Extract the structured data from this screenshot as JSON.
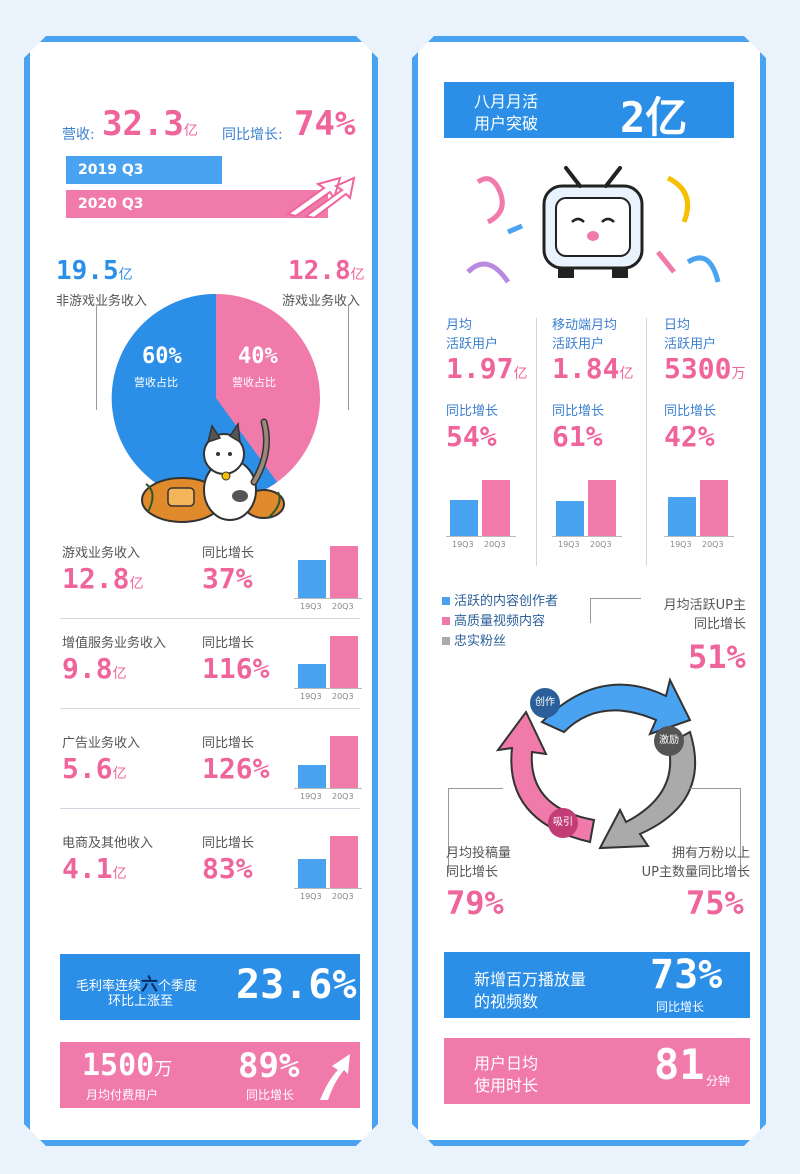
{
  "left": {
    "revenue_label": "营收:",
    "revenue_value": "32.3",
    "revenue_unit": "亿",
    "yoy_label": "同比增长:",
    "yoy_value": "74%",
    "q_2019": "2019 Q3",
    "q_2020": "2020 Q3",
    "pie": {
      "non_game_value": "19.5",
      "non_game_unit": "亿",
      "non_game_label": "非游戏业务收入",
      "game_value": "12.8",
      "game_unit": "亿",
      "game_label": "游戏业务收入",
      "non_game_pct": "60%",
      "game_pct": "40%",
      "share_label": "营收占比"
    },
    "segments": [
      {
        "name": "游戏业务收入",
        "value": "12.8",
        "unit": "亿",
        "yoy_label": "同比增长",
        "yoy": "37%",
        "ratio_2019": 0.73
      },
      {
        "name": "增值服务业务收入",
        "value": "9.8",
        "unit": "亿",
        "yoy_label": "同比增长",
        "yoy": "116%",
        "ratio_2019": 0.46
      },
      {
        "name": "广告业务收入",
        "value": "5.6",
        "unit": "亿",
        "yoy_label": "同比增长",
        "yoy": "126%",
        "ratio_2019": 0.44
      },
      {
        "name": "电商及其他收入",
        "value": "4.1",
        "unit": "亿",
        "yoy_label": "同比增长",
        "yoy": "83%",
        "ratio_2019": 0.55
      }
    ],
    "tick_2019": "19Q3",
    "tick_2020": "20Q3",
    "gross_margin_text_1": "毛利率连续",
    "gross_margin_six": "六",
    "gross_margin_text_2": "个季度",
    "gross_margin_text_3": "环比上涨至",
    "gross_margin_value": "23.6%",
    "paid_users_value": "1500",
    "paid_users_unit": "万",
    "paid_users_label": "月均付费用户",
    "paid_users_yoy": "89%",
    "paid_users_yoy_label": "同比增长"
  },
  "right": {
    "mau_title_1": "八月月活",
    "mau_title_2": "用户突破",
    "mau_value": "2亿",
    "stats": [
      {
        "label_1": "月均",
        "label_2": "活跃用户",
        "value": "1.97",
        "unit": "亿",
        "yoy_label": "同比增长",
        "yoy": "54%",
        "ratio_2019": 0.65
      },
      {
        "label_1": "移动端月均",
        "label_2": "活跃用户",
        "value": "1.84",
        "unit": "亿",
        "yoy_label": "同比增长",
        "yoy": "61%",
        "ratio_2019": 0.62
      },
      {
        "label_1": "日均",
        "label_2": "活跃用户",
        "value": "5300",
        "unit": "万",
        "yoy_label": "同比增长",
        "yoy": "42%",
        "ratio_2019": 0.7
      }
    ],
    "tick_2019": "19Q3",
    "tick_2020": "20Q3",
    "legend": [
      {
        "text": "活跃的内容创作者",
        "color": "#4aa3f0"
      },
      {
        "text": "高质量视频内容",
        "color": "#f07aaa"
      },
      {
        "text": "忠实粉丝",
        "color": "#aaaaaa"
      }
    ],
    "cycle_create": "创作",
    "cycle_motivate": "激励",
    "cycle_attract": "吸引",
    "up_active_1": "月均活跃UP主",
    "up_active_2": "同比增长",
    "up_active_value": "51%",
    "submit_1": "月均投稿量",
    "submit_2": "同比增长",
    "submit_value": "79%",
    "fans_1": "拥有万粉以上",
    "fans_2": "UP主数量同比增长",
    "fans_value": "75%",
    "video_text_1": "新增百万播放量",
    "video_text_2": "的视频数",
    "video_value": "73%",
    "video_yoy_label": "同比增长",
    "time_text_1": "用户日均",
    "time_text_2": "使用时长",
    "time_value": "81",
    "time_unit": "分钟"
  }
}
